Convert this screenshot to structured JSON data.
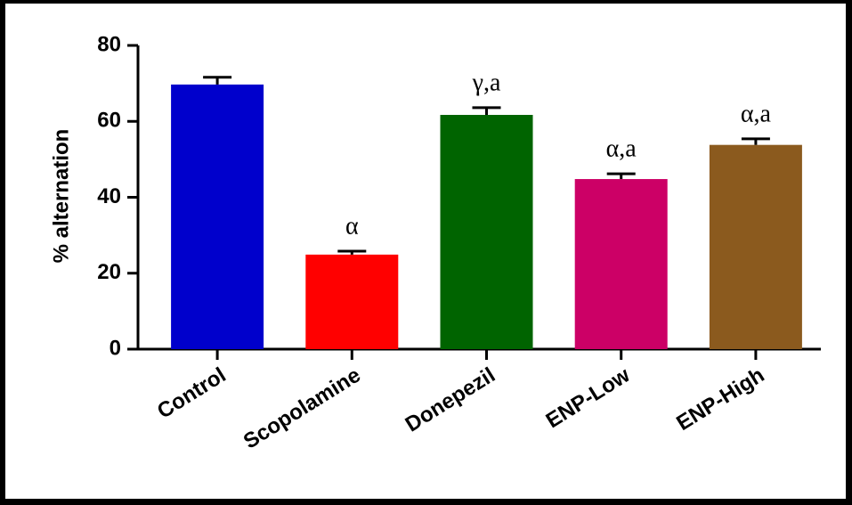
{
  "chart_data": {
    "type": "bar",
    "y_label": "% alternation",
    "categories": [
      "Control",
      "Scopolamine",
      "Donepezil",
      "ENP-Low",
      "ENP-High"
    ],
    "values": [
      69.7,
      24.9,
      61.7,
      44.8,
      53.8
    ],
    "errors": [
      1.9,
      0.9,
      1.9,
      1.4,
      1.6
    ],
    "colors": [
      "#0000cc",
      "#ff0000",
      "#006400",
      "#cc0066",
      "#8b5a1e"
    ],
    "annotations": [
      null,
      "α",
      "γ,a",
      "α,a",
      "α,a"
    ],
    "ylim": [
      0,
      80
    ],
    "yticks": [
      0,
      20,
      40,
      60,
      80
    ],
    "grid": false
  }
}
